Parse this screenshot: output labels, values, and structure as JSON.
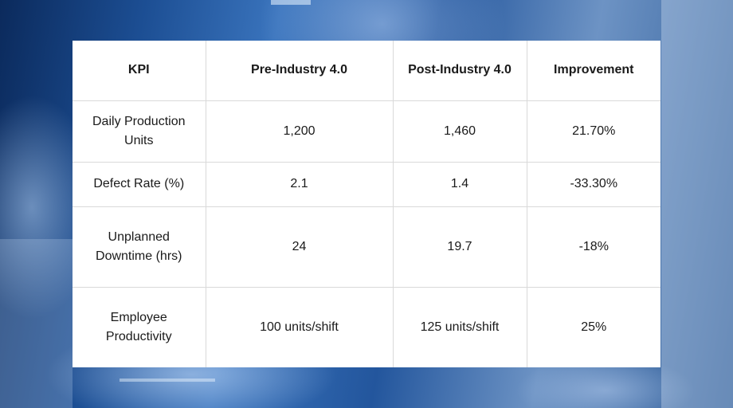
{
  "table": {
    "headers": [
      "KPI",
      "Pre-Industry 4.0",
      "Post-Industry 4.0",
      "Improvement"
    ],
    "rows": [
      {
        "kpi": "Daily Production Units",
        "pre": "1,200",
        "post": "1,460",
        "improvement": "21.70%"
      },
      {
        "kpi": "Defect Rate (%)",
        "pre": "2.1",
        "post": "1.4",
        "improvement": "-33.30%"
      },
      {
        "kpi": "Unplanned Downtime (hrs)",
        "pre": "24",
        "post": "19.7",
        "improvement": "-18%"
      },
      {
        "kpi": "Employee Productivity",
        "pre": "100 units/shift",
        "post": "125 units/shift",
        "improvement": "25%"
      }
    ]
  },
  "colors": {
    "background_dark": "#0b2a5c",
    "background_mid": "#3a74bd",
    "card": "#ffffff",
    "grid": "#d9d9d9",
    "text": "#1a1a1a"
  }
}
